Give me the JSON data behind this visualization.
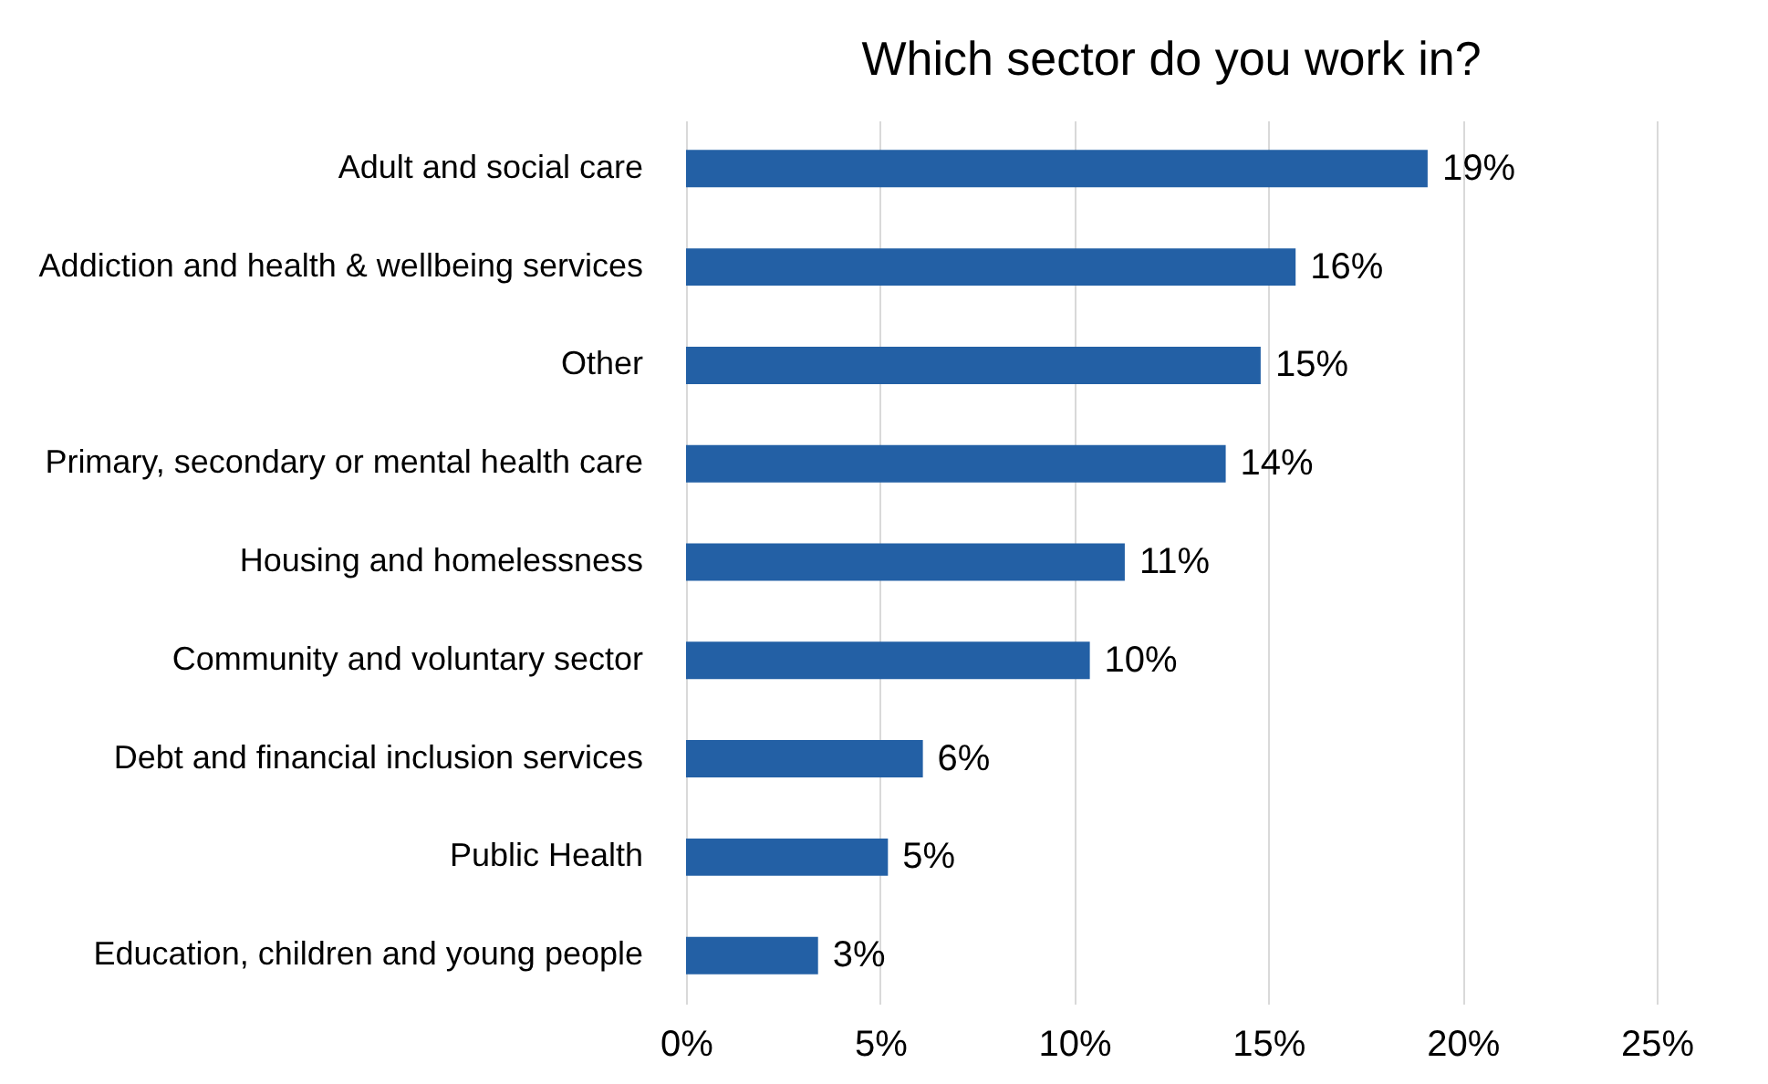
{
  "chart_data": {
    "type": "bar",
    "orientation": "horizontal",
    "title": "Which sector do you work in?",
    "categories": [
      "Adult and social care",
      "Addiction and health & wellbeing services",
      "Other",
      "Primary, secondary or mental health care",
      "Housing and homelessness",
      "Community and voluntary sector",
      "Debt and financial inclusion services",
      "Public Health",
      "Education, children and young people"
    ],
    "values": [
      19.1,
      15.7,
      14.8,
      13.9,
      11.3,
      10.4,
      6.1,
      5.2,
      3.4
    ],
    "value_labels": [
      "19%",
      "16%",
      "15%",
      "14%",
      "11%",
      "10%",
      "6%",
      "5%",
      "3%"
    ],
    "color": "#2360a5",
    "xlim": [
      0,
      25
    ],
    "xticks": [
      {
        "value": 0,
        "label": "0%"
      },
      {
        "value": 5,
        "label": "5%"
      },
      {
        "value": 10,
        "label": "10%"
      },
      {
        "value": 15,
        "label": "15%"
      },
      {
        "value": 20,
        "label": "20%"
      },
      {
        "value": 25,
        "label": "25%"
      }
    ],
    "grid": "x"
  }
}
